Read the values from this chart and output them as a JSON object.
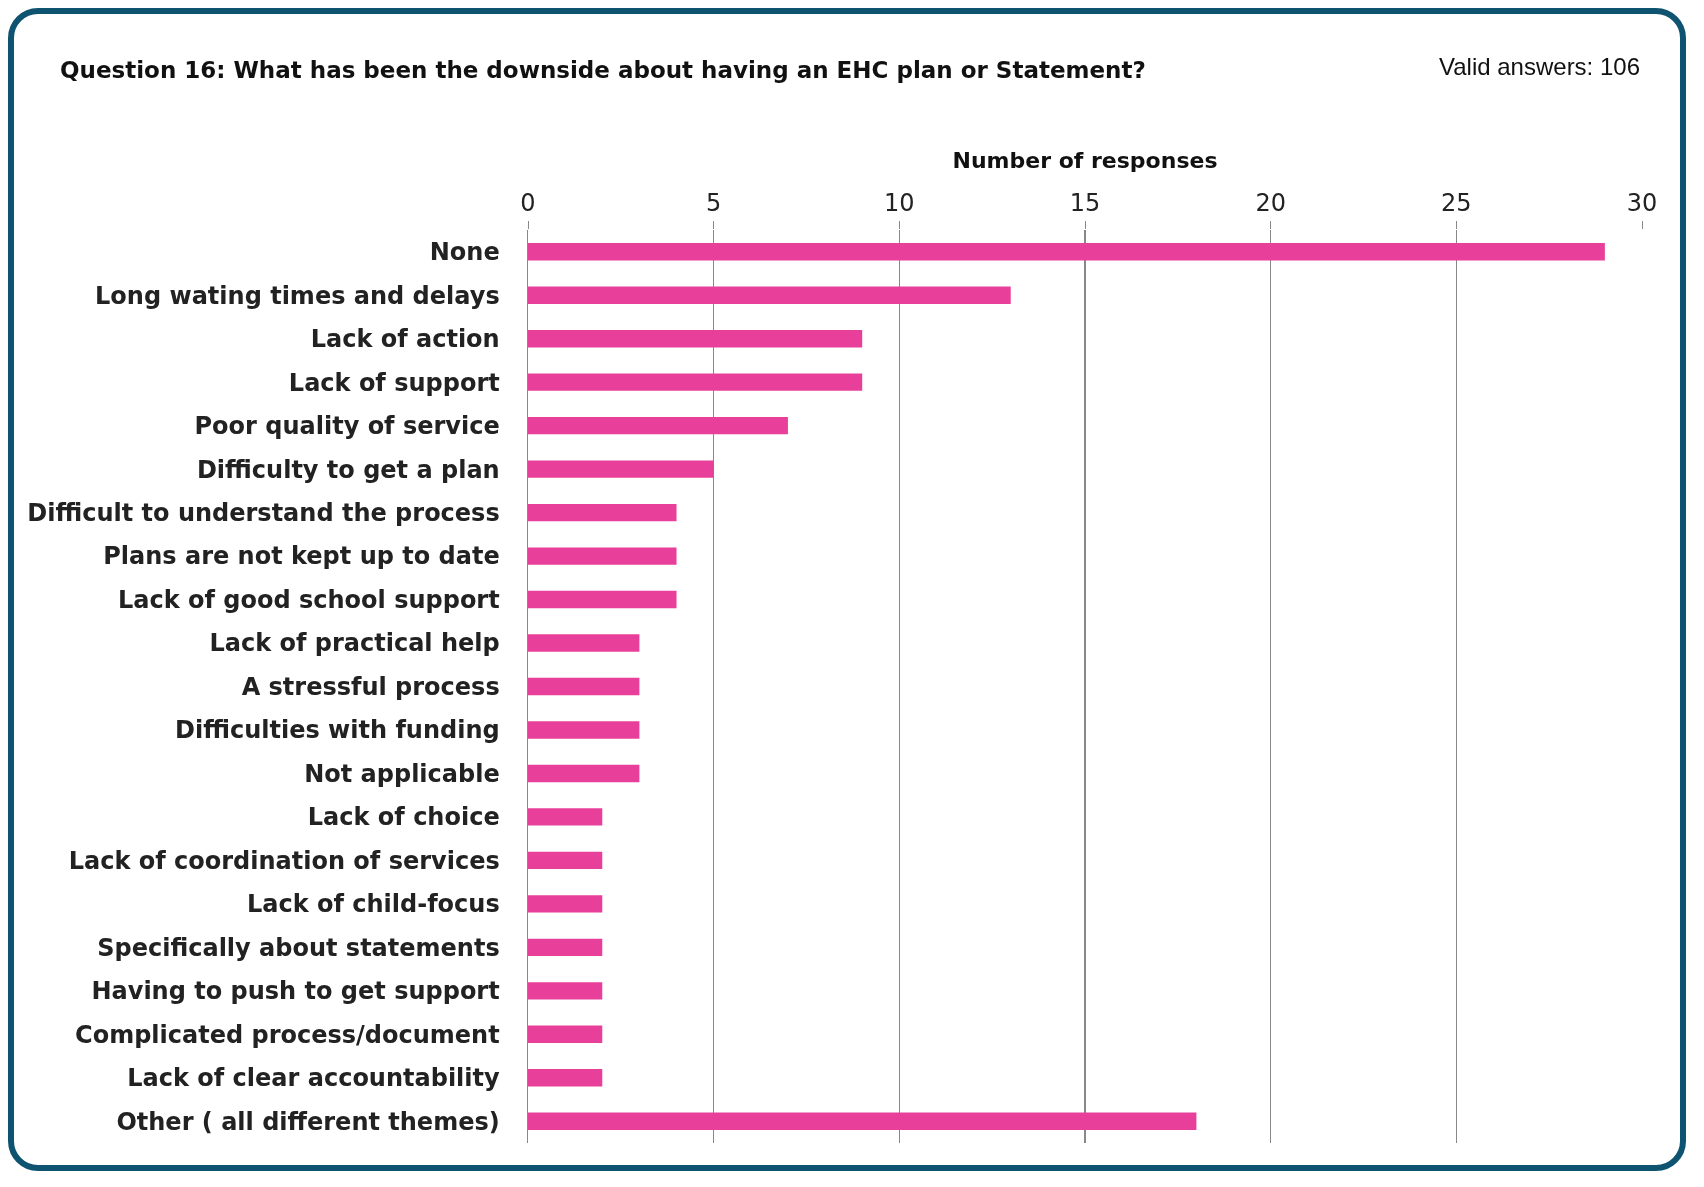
{
  "chart_data": {
    "type": "bar",
    "orientation": "horizontal",
    "title": "Question 16: What has been the downside about having an EHC plan or Statement?",
    "xlabel": "Number of responses",
    "annotations": [
      "Valid answers: 106"
    ],
    "categories": [
      "None",
      "Long wating times and delays",
      "Lack of action",
      "Lack of support",
      "Poor quality of service",
      "Difficulty to get a plan",
      "Difficult to understand the process",
      "Plans are not kept up to date",
      "Lack of good school support",
      "Lack of practical help",
      "A stressful process",
      "Difficulties with funding",
      "Not applicable",
      "Lack of choice",
      "Lack of coordination of services",
      "Lack of child-focus",
      "Specifically about statements",
      "Having to push to get support",
      "Complicated process/document",
      "Lack of clear accountability",
      "Other ( all different themes)"
    ],
    "values": [
      29,
      13,
      9,
      9,
      7,
      5,
      4,
      4,
      4,
      3,
      3,
      3,
      3,
      2,
      2,
      2,
      2,
      2,
      2,
      2,
      18
    ],
    "color": "#e8409a",
    "xlim": [
      0,
      30
    ],
    "xticks": [
      0,
      5,
      10,
      15,
      20,
      25,
      30
    ],
    "grid": "x"
  }
}
